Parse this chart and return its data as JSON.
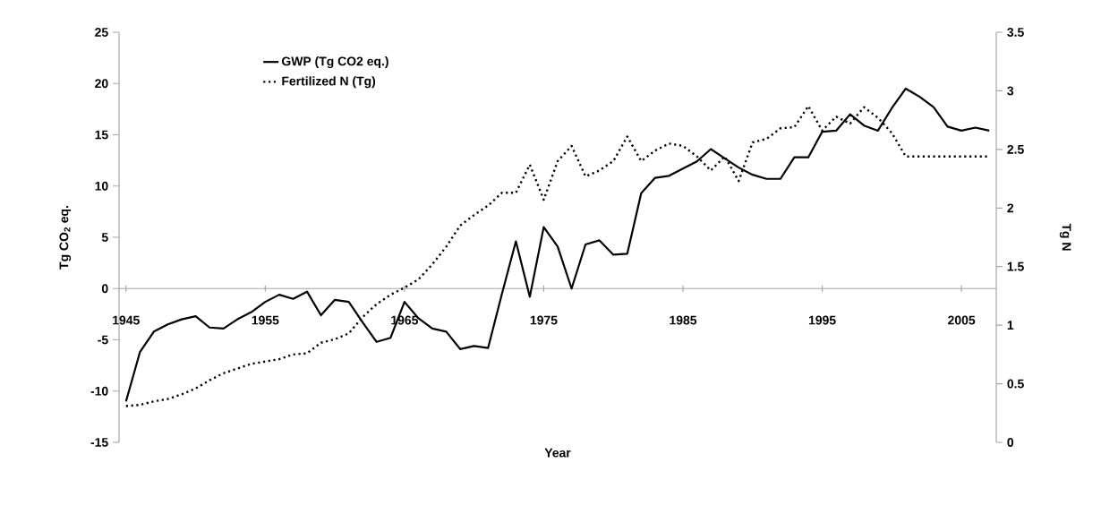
{
  "chart_data": {
    "type": "line",
    "xlabel": "Year",
    "ylabel": "Tg CO$_{2}$ eq.",
    "y2label": "Tg N",
    "x": [
      1945,
      1946,
      1947,
      1948,
      1949,
      1950,
      1951,
      1952,
      1953,
      1954,
      1955,
      1956,
      1957,
      1958,
      1959,
      1960,
      1961,
      1962,
      1963,
      1964,
      1965,
      1966,
      1967,
      1968,
      1969,
      1970,
      1971,
      1972,
      1973,
      1974,
      1975,
      1976,
      1977,
      1978,
      1979,
      1980,
      1981,
      1982,
      1983,
      1984,
      1985,
      1986,
      1987,
      1988,
      1989,
      1990,
      1991,
      1992,
      1993,
      1994,
      1995,
      1996,
      1997,
      1998,
      1999,
      2000,
      2001,
      2002,
      2003,
      2004,
      2005,
      2006,
      2007
    ],
    "xlim": [
      1944.5,
      2007.5
    ],
    "xticks": [
      1945,
      1955,
      1965,
      1975,
      1985,
      1995,
      2005
    ],
    "ylim": [
      -15,
      25
    ],
    "yticks": [
      -15,
      -10,
      -5,
      0,
      5,
      10,
      15,
      20,
      25
    ],
    "y2lim": [
      0,
      3.5
    ],
    "y2ticks": [
      0,
      0.5,
      1,
      1.5,
      2,
      2.5,
      3,
      3.5
    ],
    "legend": "top left",
    "grid": false,
    "series": [
      {
        "name": "GWP (Tg CO2 eq.)",
        "color": "#000000",
        "line_style": "solid",
        "values": [
          -11,
          -6.2,
          -4.2,
          -3.5,
          -3.0,
          -2.7,
          -3.8,
          -3.9,
          -3.0,
          -2.3,
          -1.3,
          -0.6,
          -1.0,
          -0.3,
          -2.6,
          -1.1,
          -1.3,
          -3.3,
          -5.2,
          -4.8,
          -1.3,
          -2.9,
          -3.9,
          -4.2,
          -5.9,
          -5.6,
          -5.8,
          -0.5,
          4.6,
          -0.8,
          6.0,
          4.1,
          0.0,
          4.3,
          4.7,
          3.3,
          3.4,
          9.3,
          10.8,
          11.0,
          11.7,
          12.4,
          13.6,
          12.7,
          11.8,
          11.1,
          10.7,
          10.7,
          12.8,
          12.8,
          15.3,
          15.4,
          17.0,
          15.9,
          15.4,
          17.6,
          19.5,
          18.7,
          17.7,
          15.8,
          15.4,
          15.7,
          15.4
        ]
      },
      {
        "name": "Fertilized N (Tg)",
        "color": "#000000",
        "line_style": "dotted",
        "axis": "y2",
        "values": [
          0.31,
          0.32,
          0.35,
          0.37,
          0.41,
          0.46,
          0.53,
          0.59,
          0.63,
          0.67,
          0.69,
          0.71,
          0.75,
          0.76,
          0.85,
          0.88,
          0.93,
          1.07,
          1.18,
          1.26,
          1.32,
          1.39,
          1.52,
          1.67,
          1.85,
          1.94,
          2.02,
          2.13,
          2.13,
          2.37,
          2.07,
          2.4,
          2.53,
          2.27,
          2.32,
          2.4,
          2.61,
          2.4,
          2.49,
          2.55,
          2.53,
          2.44,
          2.32,
          2.44,
          2.23,
          2.56,
          2.59,
          2.68,
          2.69,
          2.87,
          2.66,
          2.78,
          2.72,
          2.86,
          2.77,
          2.64,
          2.44,
          2.44,
          2.44,
          2.44,
          2.44,
          2.44,
          2.44
        ]
      }
    ]
  }
}
